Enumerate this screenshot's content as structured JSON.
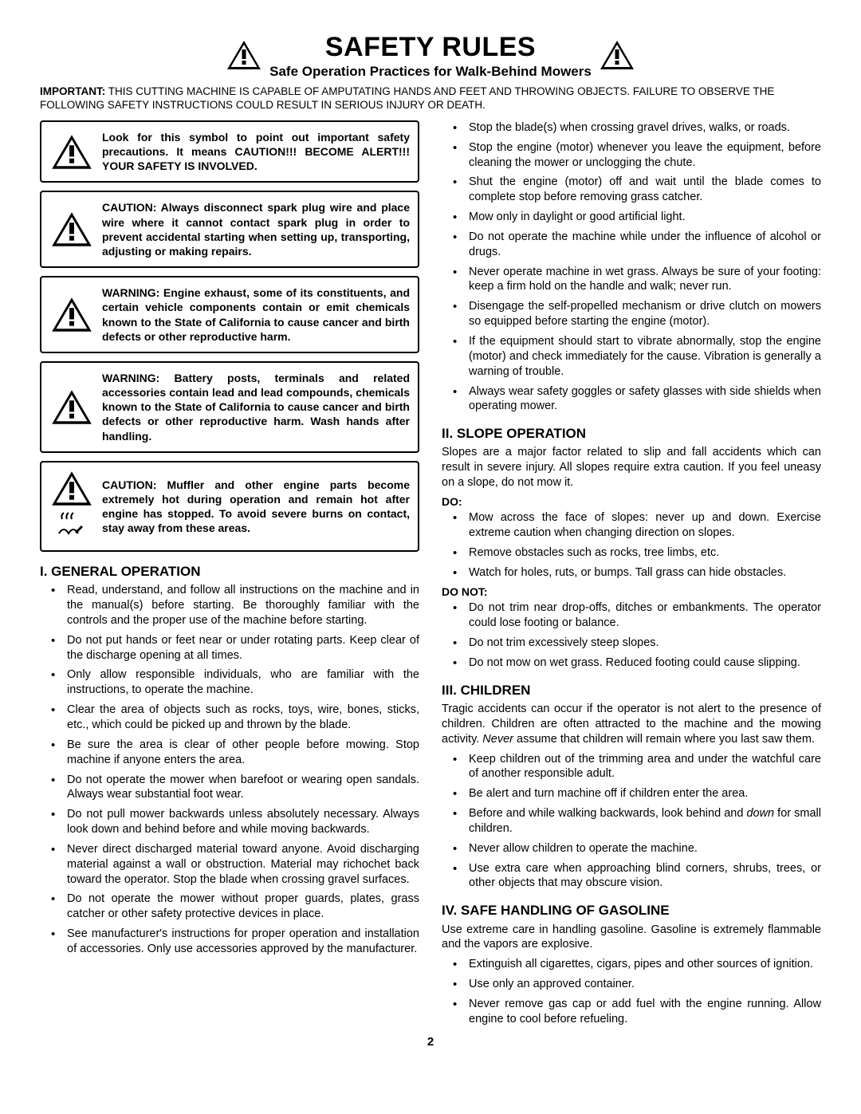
{
  "header": {
    "title": "SAFETY RULES",
    "subtitle": "Safe Operation Practices for Walk-Behind Mowers"
  },
  "important": {
    "label": "IMPORTANT:",
    "text": "THIS CUTTING MACHINE IS CAPABLE OF AMPUTATING HANDS AND FEET AND THROWING OBJECTS. FAILURE TO OBSERVE THE FOLLOWING SAFETY INSTRUCTIONS COULD RESULT IN SERIOUS INJURY OR DEATH."
  },
  "warnings": [
    "Look for this symbol to point out important safety precautions. It means CAUTION!!! BECOME ALERT!!! YOUR SAFETY IS INVOLVED.",
    "CAUTION: Always disconnect spark plug wire and place wire where it cannot contact spark plug in order to prevent accidental starting when setting up, transporting, adjusting or making repairs.",
    "WARNING: Engine exhaust, some of its constituents, and certain vehicle components contain or emit chemicals known to the State of California to cause cancer and birth defects or other reproductive harm.",
    "WARNING: Battery posts, terminals and related accessories contain lead and lead compounds, chemicals known to the State of California to cause cancer and birth defects or other reproductive harm. Wash hands after handling.",
    "CAUTION: Muffler and other engine parts become extremely hot during operation and remain hot after engine has stopped. To avoid severe burns on contact, stay away from these areas."
  ],
  "sections": {
    "general": {
      "title": "I. GENERAL OPERATION",
      "items_left": [
        "Read, understand, and follow all instructions on the machine and in the manual(s) before starting. Be thoroughly familiar with the controls and the proper use of the machine before starting.",
        "Do not put hands or feet near or under rotating parts. Keep clear of the discharge opening at all times.",
        "Only allow responsible individuals, who are familiar with the instructions, to operate the machine.",
        "Clear the area of objects such as  rocks, toys, wire, bones, sticks, etc.,  which could be picked up and thrown by the blade.",
        "Be sure the area is clear of other people before mowing.  Stop machine if anyone enters the area.",
        "Do not operate the mower when barefoot or wearing open sandals.  Always wear substantial foot wear.",
        "Do not pull mower backwards unless absolutely necessary.  Always look down and behind before and while moving backwards.",
        "Never direct discharged material toward anyone. Avoid discharging material against a wall or obstruction.  Material may richochet back toward the operator.  Stop the blade when crossing gravel surfaces.",
        "Do not operate the mower without proper guards, plates, grass catcher or other safety protective devices in place.",
        "See manufacturer's instructions for proper operation and installation of accessories. Only use accessories approved by the manufacturer."
      ],
      "items_right": [
        "Stop the blade(s) when crossing gravel drives, walks, or roads.",
        "Stop the engine (motor) whenever you leave the equipment, before cleaning the mower or unclogging the chute.",
        "Shut the engine (motor) off and wait until the blade comes to complete stop before removing grass catcher.",
        "Mow only in daylight or good artificial light.",
        "Do not operate the machine while under the influence of alcohol or drugs.",
        "Never operate machine in wet grass.  Always be sure of your footing: keep a firm hold on the handle and walk; never run.",
        "Disengage the self-propelled mechanism or drive clutch on mowers so equipped before starting the engine (motor).",
        "If the equipment should start to vibrate abnormally, stop the engine (motor) and check immediately for the cause.  Vibration is generally a warning of trouble.",
        "Always wear safety goggles or safety glasses with side shields when operating mower."
      ]
    },
    "slope": {
      "title": "II.  SLOPE OPERATION",
      "intro": "Slopes are a major factor related to slip and fall accidents which can result in severe injury.  All slopes require extra caution.  If you feel uneasy on a slope, do not mow it.",
      "do_label": "DO:",
      "do_items": [
        "Mow across the face of slopes: never up and down.  Exercise extreme caution when changing direction on slopes.",
        "Remove obstacles such as rocks, tree limbs, etc.",
        "Watch for holes, ruts, or bumps. Tall grass can hide obstacles."
      ],
      "donot_label": "DO NOT:",
      "donot_items": [
        "Do not trim near drop-offs, ditches or embankments. The operator could lose footing or balance.",
        "Do not trim excessively steep slopes.",
        "Do not mow on wet grass. Reduced footing could cause slipping."
      ]
    },
    "children": {
      "title": "III. CHILDREN",
      "intro_pre": "Tragic accidents can occur if the operator is not alert to the presence of children.  Children are often attracted to the machine and the mowing activity. ",
      "intro_em": "Never",
      "intro_post": " assume that children will remain where you last saw them.",
      "items": [
        "Keep children out of the trimming area and under the watchful care of another responsible adult.",
        "Be alert and turn machine off if children enter the area.",
        "Before and while walking backwards, look behind and <em>down</em> for small children.",
        "Never allow children to operate the machine.",
        "Use extra care when approaching blind corners, shrubs, trees, or other objects that may obscure vision."
      ]
    },
    "gasoline": {
      "title": "IV. SAFE HANDLING OF GASOLINE",
      "intro": "Use extreme care in handling gasoline.  Gasoline is extremely flammable and the vapors are explosive.",
      "items": [
        "Extinguish all cigarettes, cigars, pipes and other sources of ignition.",
        "Use only an approved container.",
        "Never remove gas cap or add fuel with the engine running.  Allow engine to cool before refueling."
      ]
    }
  },
  "page_number": "2"
}
